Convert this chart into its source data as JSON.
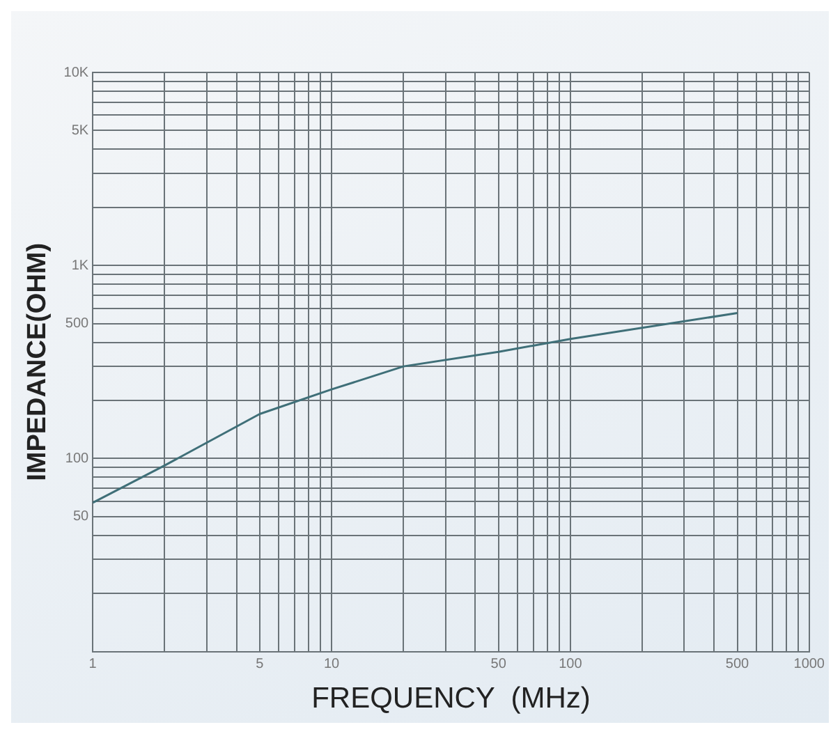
{
  "chart_data": {
    "type": "line",
    "xlabel": "FREQUENCY  (MHz)",
    "ylabel": "IMPEDANCE(OHM)",
    "x": [
      1,
      2,
      5,
      10,
      20,
      50,
      100,
      500
    ],
    "series": [
      {
        "color": "#3f6f78",
        "values": [
          59,
          92,
          170,
          228,
          300,
          357,
          416,
          567
        ]
      }
    ],
    "log": "xy",
    "grid": true,
    "marker": "none",
    "line_style": "solid",
    "xlim": [
      1,
      1000
    ],
    "ylim": [
      10,
      10000
    ],
    "xticks": [
      1,
      {
        "value": 2,
        "label": null
      },
      {
        "value": 3,
        "label": null
      },
      {
        "value": 4,
        "label": null
      },
      5,
      {
        "value": 6,
        "label": null
      },
      {
        "value": 7,
        "label": null
      },
      {
        "value": 8,
        "label": null
      },
      {
        "value": 9,
        "label": null
      },
      10,
      {
        "value": 20,
        "label": null
      },
      {
        "value": 30,
        "label": null
      },
      {
        "value": 40,
        "label": null
      },
      50,
      {
        "value": 60,
        "label": null
      },
      {
        "value": 70,
        "label": null
      },
      {
        "value": 80,
        "label": null
      },
      {
        "value": 90,
        "label": null
      },
      100,
      {
        "value": 200,
        "label": null
      },
      {
        "value": 300,
        "label": null
      },
      {
        "value": 400,
        "label": null
      },
      500,
      {
        "value": 600,
        "label": null
      },
      {
        "value": 700,
        "label": null
      },
      {
        "value": 800,
        "label": null
      },
      {
        "value": 900,
        "label": null
      },
      1000
    ],
    "yticks": [
      {
        "value": 10,
        "label": null
      },
      {
        "value": 20,
        "label": null
      },
      {
        "value": 30,
        "label": null
      },
      {
        "value": 40,
        "label": null
      },
      50,
      {
        "value": 60,
        "label": null
      },
      {
        "value": 70,
        "label": null
      },
      {
        "value": 80,
        "label": null
      },
      {
        "value": 90,
        "label": null
      },
      100,
      {
        "value": 200,
        "label": null
      },
      {
        "value": 300,
        "label": null
      },
      {
        "value": 400,
        "label": null
      },
      500,
      {
        "value": 600,
        "label": null
      },
      {
        "value": 700,
        "label": null
      },
      {
        "value": 800,
        "label": null
      },
      {
        "value": 900,
        "label": null
      },
      {
        "value": 1000,
        "label": "1K"
      },
      {
        "value": 2000,
        "label": null
      },
      {
        "value": 3000,
        "label": null
      },
      {
        "value": 4000,
        "label": null
      },
      {
        "value": 5000,
        "label": "5K"
      },
      {
        "value": 6000,
        "label": null
      },
      {
        "value": 7000,
        "label": null
      },
      {
        "value": 8000,
        "label": null
      },
      {
        "value": 9000,
        "label": null
      },
      {
        "value": 10000,
        "label": "10K"
      }
    ]
  }
}
